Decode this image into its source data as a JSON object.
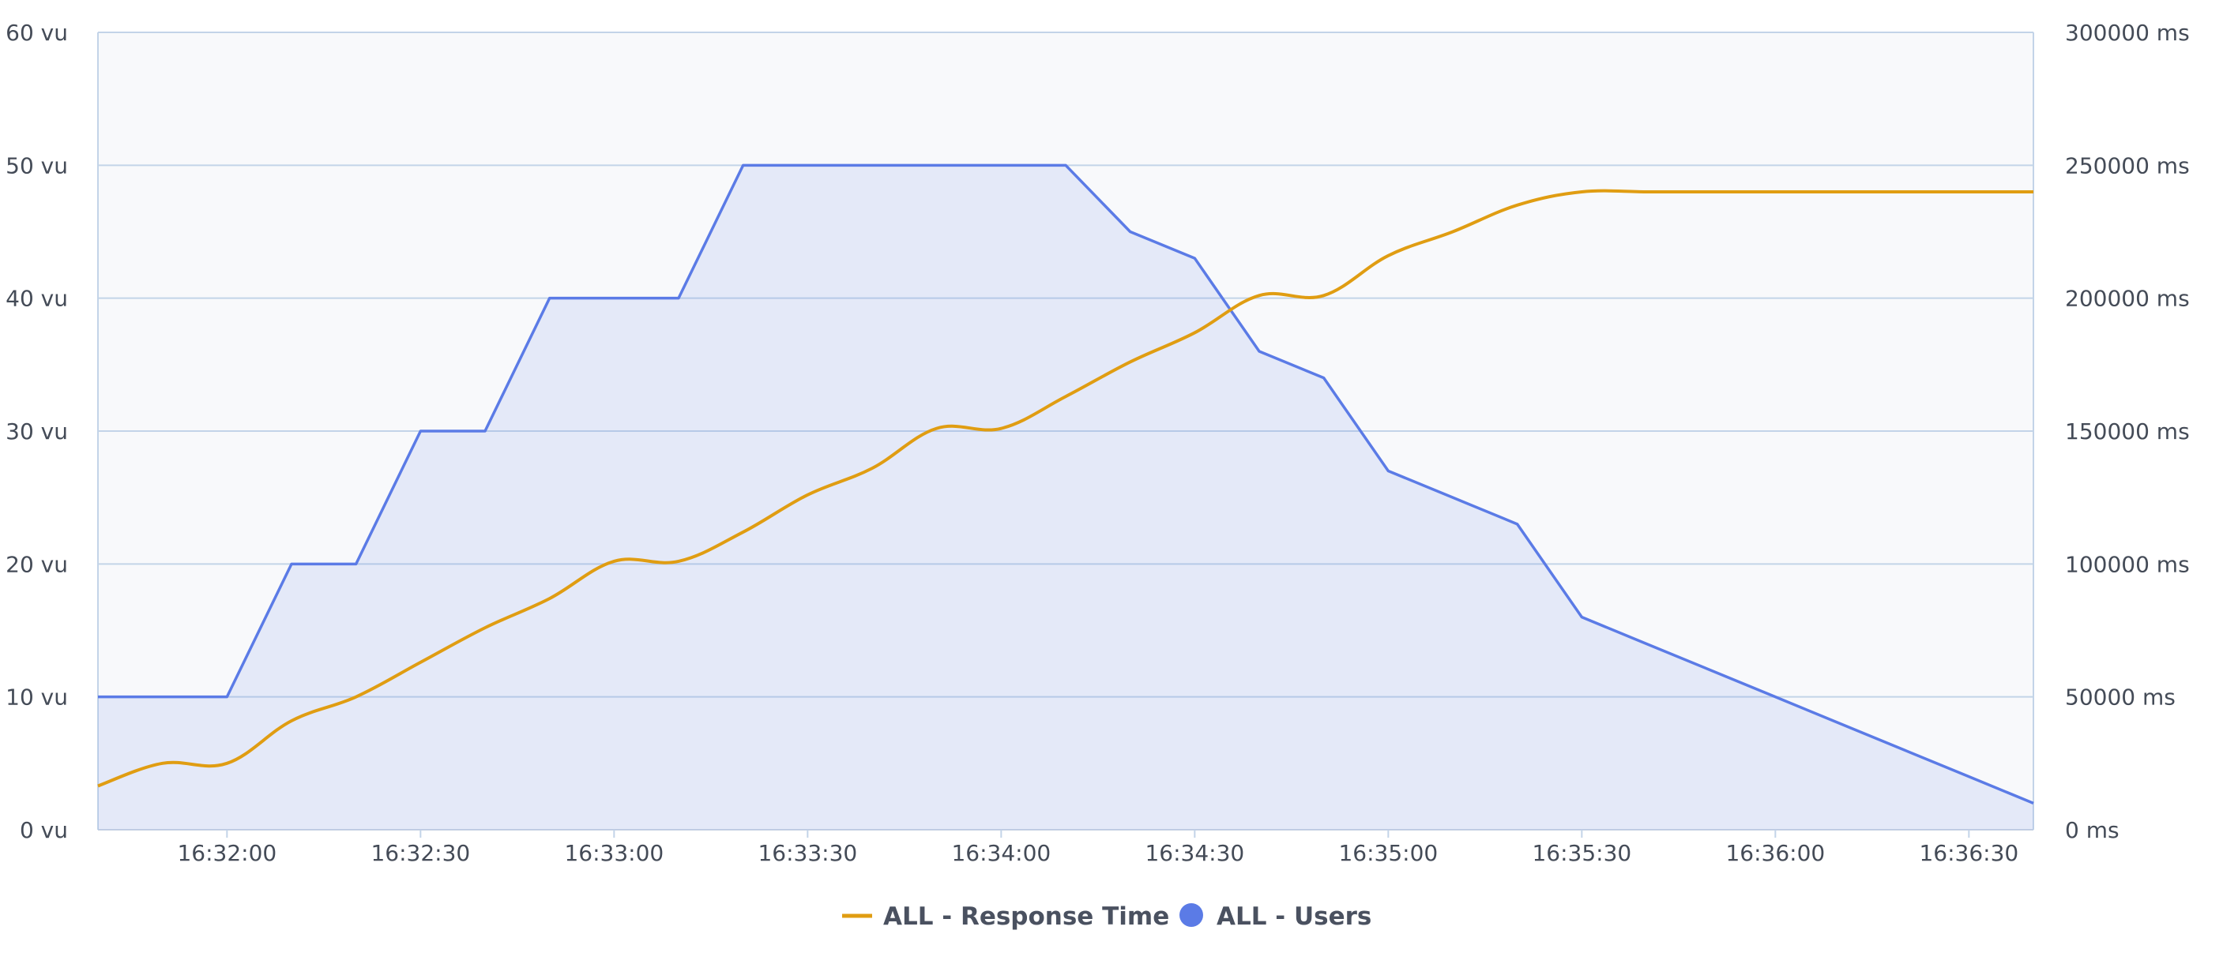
{
  "chart_data": {
    "type": "line",
    "title": "",
    "x": [
      "16:31:40",
      "16:31:50",
      "16:32:00",
      "16:32:10",
      "16:32:20",
      "16:32:30",
      "16:32:40",
      "16:32:50",
      "16:33:00",
      "16:33:10",
      "16:33:20",
      "16:33:30",
      "16:33:40",
      "16:33:50",
      "16:34:00",
      "16:34:10",
      "16:34:20",
      "16:34:30",
      "16:34:40",
      "16:34:50",
      "16:35:00",
      "16:35:10",
      "16:35:20",
      "16:35:30",
      "16:35:40",
      "16:35:50",
      "16:36:00",
      "16:36:10",
      "16:36:20",
      "16:36:30",
      "16:36:40"
    ],
    "x_ticks": [
      "16:32:00",
      "16:32:30",
      "16:33:00",
      "16:33:30",
      "16:34:00",
      "16:34:30",
      "16:35:00",
      "16:35:30",
      "16:36:00",
      "16:36:30"
    ],
    "y_left": {
      "range": [
        0,
        60
      ],
      "ticks": [
        "0 vu",
        "10 vu",
        "20 vu",
        "30 vu",
        "40 vu",
        "50 vu",
        "60 vu"
      ]
    },
    "y_right": {
      "range": [
        0,
        300000
      ],
      "ticks": [
        "0 ms",
        "50000 ms",
        "100000 ms",
        "150000 ms",
        "200000 ms",
        "250000 ms",
        "300000 ms"
      ]
    },
    "grid": true,
    "legend_position": "bottom-center",
    "series": [
      {
        "name": "ALL - Response Time",
        "axis": "right",
        "style": "line",
        "color": "#e09d12",
        "values": [
          16500,
          25000,
          25000,
          41000,
          50000,
          63000,
          76000,
          87000,
          101000,
          101000,
          112000,
          126000,
          136000,
          151000,
          151000,
          163000,
          176000,
          187000,
          201000,
          201000,
          216000,
          225000,
          235000,
          240000,
          240000,
          240000,
          240000,
          240000,
          240000,
          240000,
          240000
        ]
      },
      {
        "name": "ALL - Users",
        "axis": "left",
        "style": "area",
        "color": "#5b7be6",
        "values": [
          10,
          10,
          10,
          20,
          20,
          30,
          30,
          40,
          40,
          40,
          50,
          50,
          50,
          50,
          50,
          50,
          45,
          43,
          36,
          34,
          27,
          25,
          23,
          16,
          14,
          12,
          10,
          8,
          6,
          4,
          2
        ]
      }
    ]
  }
}
